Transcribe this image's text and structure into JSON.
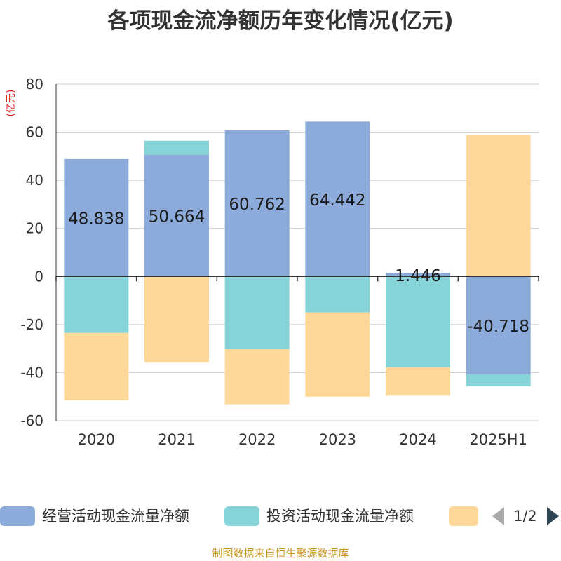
{
  "chart_data": {
    "type": "bar",
    "stacked": true,
    "title": "各项现金流净额历年变化情况(亿元)",
    "ylabel": "(亿元)",
    "categories": [
      "2020",
      "2021",
      "2022",
      "2023",
      "2024",
      "2025H1"
    ],
    "ylim": [
      -60,
      80
    ],
    "yticks": [
      80,
      60,
      40,
      20,
      0,
      -20,
      -40,
      -60
    ],
    "grid": true,
    "legend_position": "bottom",
    "series": [
      {
        "name": "经营活动现金流量净额",
        "color": "#8dabda",
        "values": [
          48.838,
          50.664,
          60.762,
          64.442,
          1.446,
          -40.718
        ],
        "labels": [
          "48.838",
          "50.664",
          "60.762",
          "64.442",
          "1.446",
          "-40.718"
        ]
      },
      {
        "name": "投资活动现金流量净额",
        "color": "#86d4d8",
        "values": [
          -23.5,
          5.8,
          -30.2,
          -15.0,
          -37.8,
          -5.0
        ]
      },
      {
        "name": "",
        "color": "#fed898",
        "values": [
          -28.0,
          -35.6,
          -23.0,
          -35.0,
          -11.5,
          59.0
        ]
      }
    ]
  },
  "legend": {
    "page": "1/2"
  },
  "source": "制图数据来自恒生聚源数据库"
}
